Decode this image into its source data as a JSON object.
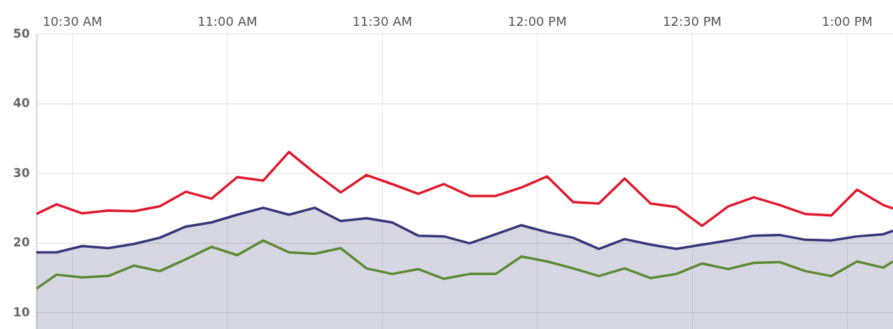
{
  "chart_data": {
    "type": "line",
    "x": [
      10.385,
      10.45,
      10.533,
      10.617,
      10.7,
      10.783,
      10.867,
      10.95,
      11.033,
      11.117,
      11.2,
      11.283,
      11.367,
      11.45,
      11.533,
      11.617,
      11.7,
      11.783,
      11.867,
      11.95,
      12.033,
      12.117,
      12.2,
      12.283,
      12.367,
      12.45,
      12.533,
      12.617,
      12.7,
      12.783,
      12.867,
      12.95,
      13.033,
      13.117,
      13.149
    ],
    "series": [
      {
        "type": "area",
        "color": "#35357a",
        "values": [
          18.6,
          18.6,
          19.5,
          19.2,
          19.8,
          20.7,
          22.3,
          22.9,
          24.0,
          25.0,
          24.0,
          25.0,
          23.1,
          23.5,
          22.9,
          21.0,
          20.9,
          19.9,
          21.2,
          22.5,
          21.5,
          20.7,
          19.1,
          20.5,
          19.7,
          19.1,
          19.7,
          20.3,
          21.0,
          21.1,
          20.4,
          20.3,
          20.9,
          21.2,
          21.7
        ]
      },
      {
        "color": "#e0182d",
        "values": [
          24.1,
          25.5,
          24.2,
          24.6,
          24.5,
          25.2,
          27.3,
          26.3,
          29.4,
          28.9,
          33.0,
          30.0,
          27.2,
          29.7,
          28.4,
          27.0,
          28.4,
          26.7,
          26.7,
          27.9,
          29.5,
          25.8,
          25.6,
          29.2,
          25.6,
          25.1,
          22.4,
          25.2,
          26.5,
          25.4,
          24.1,
          23.9,
          27.6,
          25.4,
          24.9
        ]
      },
      {
        "color": "#5a8a32",
        "values": [
          13.4,
          15.4,
          15.0,
          15.2,
          16.7,
          15.9,
          17.6,
          19.4,
          18.2,
          20.3,
          18.6,
          18.4,
          19.2,
          16.3,
          15.5,
          16.2,
          14.8,
          15.5,
          15.5,
          18.0,
          17.3,
          16.3,
          15.2,
          16.3,
          14.9,
          15.5,
          17.0,
          16.2,
          17.1,
          17.2,
          15.9,
          15.2,
          17.3,
          16.4,
          17.3
        ]
      }
    ],
    "xlim": [
      10.385,
      13.149
    ],
    "xticks": [
      {
        "value": 10.5,
        "label": "10:30 AM"
      },
      {
        "value": 11,
        "label": "11:00 AM"
      },
      {
        "value": 11.5,
        "label": "11:30 AM"
      },
      {
        "value": 12,
        "label": "12:00 PM"
      },
      {
        "value": 12.5,
        "label": "12:30 PM"
      },
      {
        "value": 13,
        "label": "1:00 PM"
      }
    ],
    "ylim": [
      7.6,
      50
    ],
    "yticks": [
      10,
      20,
      30,
      40,
      50
    ],
    "grid": true,
    "marker": "none",
    "line_style": "solid"
  }
}
